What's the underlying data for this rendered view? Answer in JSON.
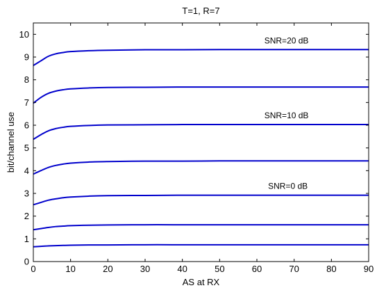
{
  "chart_data": {
    "type": "line",
    "title": "T=1, R=7",
    "xlabel": "AS at RX",
    "ylabel": "bit/channel use",
    "xlim": [
      0,
      90
    ],
    "ylim": [
      0,
      10.5
    ],
    "xticks": [
      0,
      10,
      20,
      30,
      40,
      50,
      60,
      70,
      80,
      90
    ],
    "yticks": [
      0,
      1,
      2,
      3,
      4,
      5,
      6,
      7,
      8,
      9,
      10
    ],
    "grid": false,
    "line_color": "#0000cc",
    "x": [
      0,
      2,
      4,
      6,
      8,
      10,
      15,
      20,
      30,
      40,
      50,
      60,
      70,
      80,
      90
    ],
    "series": [
      {
        "values": [
          0.65,
          0.67,
          0.69,
          0.7,
          0.71,
          0.72,
          0.73,
          0.73,
          0.74,
          0.74,
          0.74,
          0.74,
          0.74,
          0.74,
          0.74
        ]
      },
      {
        "values": [
          1.4,
          1.45,
          1.5,
          1.54,
          1.56,
          1.58,
          1.6,
          1.61,
          1.62,
          1.62,
          1.62,
          1.62,
          1.62,
          1.62,
          1.62
        ]
      },
      {
        "values": [
          2.5,
          2.6,
          2.7,
          2.76,
          2.81,
          2.84,
          2.88,
          2.9,
          2.91,
          2.92,
          2.92,
          2.92,
          2.92,
          2.92,
          2.92
        ]
      },
      {
        "values": [
          3.85,
          4.0,
          4.14,
          4.23,
          4.29,
          4.33,
          4.38,
          4.4,
          4.42,
          4.42,
          4.43,
          4.43,
          4.43,
          4.43,
          4.43
        ]
      },
      {
        "values": [
          5.38,
          5.58,
          5.75,
          5.85,
          5.91,
          5.95,
          5.99,
          6.01,
          6.02,
          6.03,
          6.03,
          6.03,
          6.03,
          6.03,
          6.03
        ]
      },
      {
        "values": [
          6.97,
          7.22,
          7.4,
          7.5,
          7.56,
          7.6,
          7.64,
          7.66,
          7.67,
          7.68,
          7.68,
          7.68,
          7.68,
          7.68,
          7.68
        ]
      },
      {
        "values": [
          8.63,
          8.83,
          9.03,
          9.14,
          9.2,
          9.24,
          9.28,
          9.3,
          9.32,
          9.32,
          9.33,
          9.33,
          9.33,
          9.33,
          9.33
        ]
      }
    ],
    "annotations": [
      {
        "text": "SNR=20 dB",
        "x": 62,
        "y": 9.6
      },
      {
        "text": "SNR=10 dB",
        "x": 62,
        "y": 6.3
      },
      {
        "text": "SNR=0 dB",
        "x": 63,
        "y": 3.2
      }
    ]
  }
}
